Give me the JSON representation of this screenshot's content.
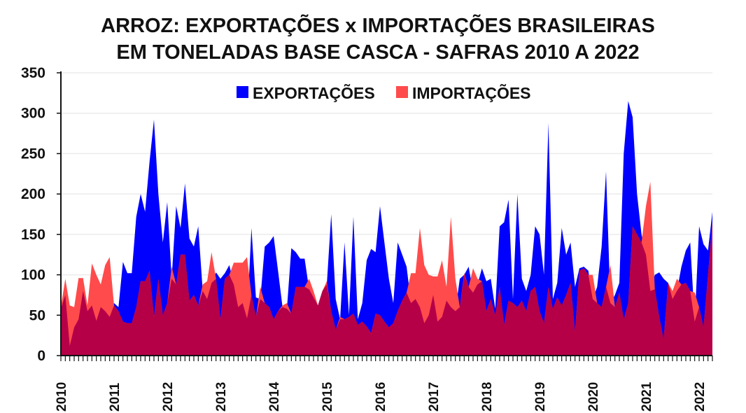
{
  "chart_data": {
    "type": "area",
    "title": [
      "ARROZ: EXPORTAÇÕES x IMPORTAÇÕES BRASILEIRAS",
      "EM TONELADAS BASE CASCA - SAFRAS 2010 A 2022"
    ],
    "xlabel": "",
    "ylabel": "",
    "ylim": [
      0,
      350
    ],
    "yticks": [
      "0",
      "50",
      "100",
      "150",
      "200",
      "250",
      "300",
      "350"
    ],
    "xtick_labels": [
      "2010",
      "2011",
      "2012",
      "2013",
      "2014",
      "2015",
      "2016",
      "2017",
      "2018",
      "2019",
      "2020",
      "2021",
      "2022"
    ],
    "x_frequency": "monthly, Jan 2010 - Apr 2022",
    "grid": true,
    "legend": "top-center",
    "colors": {
      "exports": "#0000ff",
      "imports": "#ff4b4b",
      "overlap": "#b50048"
    },
    "series": [
      {
        "name": "EXPORTAÇÕES",
        "values": [
          58,
          75,
          12,
          35,
          45,
          80,
          55,
          62,
          43,
          60,
          55,
          48,
          65,
          60,
          116,
          102,
          102,
          172,
          200,
          178,
          240,
          292,
          200,
          140,
          190,
          95,
          185,
          158,
          213,
          145,
          135,
          160,
          80,
          70,
          90,
          103,
          95,
          102,
          112,
          88,
          60,
          65,
          46,
          158,
          72,
          70,
          135,
          140,
          148,
          105,
          60,
          58,
          133,
          128,
          120,
          120,
          82,
          72,
          62,
          80,
          88,
          175,
          70,
          45,
          140,
          50,
          172,
          45,
          65,
          118,
          132,
          128,
          185,
          140,
          95,
          65,
          140,
          125,
          110,
          65,
          70,
          60,
          40,
          50,
          75,
          42,
          48,
          68,
          60,
          55,
          95,
          100,
          110,
          78,
          88,
          108,
          92,
          95,
          58,
          160,
          165,
          193,
          70,
          200,
          95,
          80,
          100,
          160,
          150,
          100,
          288,
          70,
          90,
          158,
          125,
          140,
          85,
          108,
          110,
          105,
          70,
          85,
          135,
          228,
          65,
          75,
          90,
          250,
          315,
          295,
          200,
          150,
          125,
          80,
          100,
          103,
          95,
          90,
          70,
          80,
          110,
          130,
          140,
          42,
          160,
          138,
          130,
          178
        ]
      },
      {
        "name": "IMPORTAÇÕES",
        "values": [
          60,
          95,
          62,
          60,
          96,
          96,
          62,
          114,
          100,
          88,
          112,
          122,
          62,
          55,
          42,
          40,
          40,
          60,
          92,
          92,
          105,
          48,
          95,
          50,
          65,
          110,
          88,
          125,
          125,
          68,
          75,
          62,
          88,
          92,
          128,
          95,
          45,
          95,
          100,
          115,
          115,
          115,
          122,
          75,
          48,
          85,
          65,
          60,
          45,
          55,
          62,
          65,
          52,
          85,
          85,
          85,
          95,
          80,
          62,
          80,
          92,
          55,
          32,
          48,
          45,
          48,
          52,
          38,
          42,
          36,
          28,
          52,
          50,
          42,
          35,
          40,
          55,
          68,
          78,
          102,
          102,
          158,
          112,
          100,
          98,
          98,
          118,
          85,
          172,
          95,
          60,
          102,
          85,
          108,
          95,
          92,
          55,
          70,
          50,
          85,
          38,
          68,
          65,
          60,
          68,
          55,
          80,
          85,
          55,
          40,
          85,
          58,
          72,
          62,
          75,
          90,
          30,
          105,
          108,
          100,
          100,
          65,
          60,
          85,
          112,
          60,
          78,
          45,
          65,
          160,
          150,
          140,
          185,
          215,
          82,
          48,
          20,
          90,
          80,
          95,
          88,
          90,
          80,
          78,
          60,
          35,
          100,
          165
        ]
      }
    ]
  }
}
